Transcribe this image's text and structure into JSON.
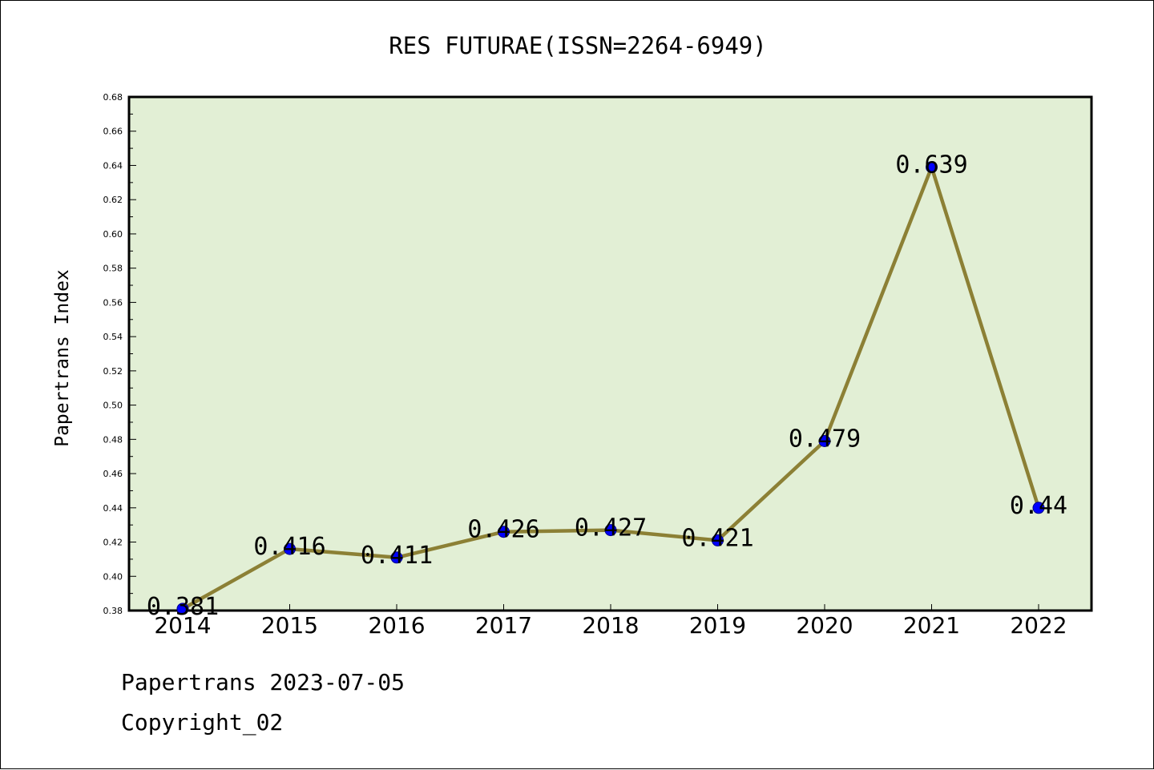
{
  "chart_data": {
    "type": "line",
    "title": "RES FUTURAE(ISSN=2264-6949)",
    "ylabel": "Papertrans Index",
    "xlabel": "",
    "categories": [
      "2014",
      "2015",
      "2016",
      "2017",
      "2018",
      "2019",
      "2020",
      "2021",
      "2022"
    ],
    "series": [
      {
        "values": [
          0.381,
          0.416,
          0.411,
          0.426,
          0.427,
          0.421,
          0.479,
          0.639,
          0.44
        ]
      }
    ],
    "data_labels": [
      "0.381",
      "0.416",
      "0.411",
      "0.426",
      "0.427",
      "0.421",
      "0.479",
      "0.639",
      "0.44"
    ],
    "ylim": [
      0.38,
      0.68
    ],
    "yticks": [
      "0.38",
      "0.40",
      "0.42",
      "0.44",
      "0.46",
      "0.48",
      "0.50",
      "0.52",
      "0.54",
      "0.56",
      "0.58",
      "0.60",
      "0.62",
      "0.64",
      "0.66",
      "0.68"
    ],
    "grid": false,
    "legend": "none",
    "colors": {
      "plot_background": "#e2efd5",
      "line": "#8c8035",
      "marker": "#0000ff"
    }
  },
  "footer": {
    "line1": "Papertrans 2023-07-05",
    "line2": "Copyright_02"
  }
}
